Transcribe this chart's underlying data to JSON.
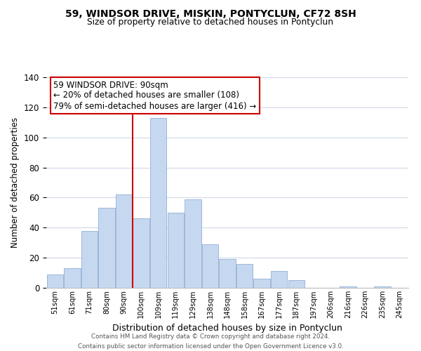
{
  "title": "59, WINDSOR DRIVE, MISKIN, PONTYCLUN, CF72 8SH",
  "subtitle": "Size of property relative to detached houses in Pontyclun",
  "xlabel": "Distribution of detached houses by size in Pontyclun",
  "ylabel": "Number of detached properties",
  "categories": [
    "51sqm",
    "61sqm",
    "71sqm",
    "80sqm",
    "90sqm",
    "100sqm",
    "109sqm",
    "119sqm",
    "129sqm",
    "138sqm",
    "148sqm",
    "158sqm",
    "167sqm",
    "177sqm",
    "187sqm",
    "197sqm",
    "206sqm",
    "216sqm",
    "226sqm",
    "235sqm",
    "245sqm"
  ],
  "values": [
    9,
    13,
    38,
    53,
    62,
    46,
    113,
    50,
    59,
    29,
    19,
    16,
    6,
    11,
    5,
    0,
    0,
    1,
    0,
    1,
    0
  ],
  "bar_color": "#c5d8f0",
  "bar_edge_color": "#9cb8d8",
  "vline_color": "#cc0000",
  "vline_index": 4,
  "ylim": [
    0,
    140
  ],
  "yticks": [
    0,
    20,
    40,
    60,
    80,
    100,
    120,
    140
  ],
  "annotation_title": "59 WINDSOR DRIVE: 90sqm",
  "annotation_line1": "← 20% of detached houses are smaller (108)",
  "annotation_line2": "79% of semi-detached houses are larger (416) →",
  "footer_line1": "Contains HM Land Registry data © Crown copyright and database right 2024.",
  "footer_line2": "Contains public sector information licensed under the Open Government Licence v3.0.",
  "background_color": "#ffffff",
  "grid_color": "#d0d8e8"
}
